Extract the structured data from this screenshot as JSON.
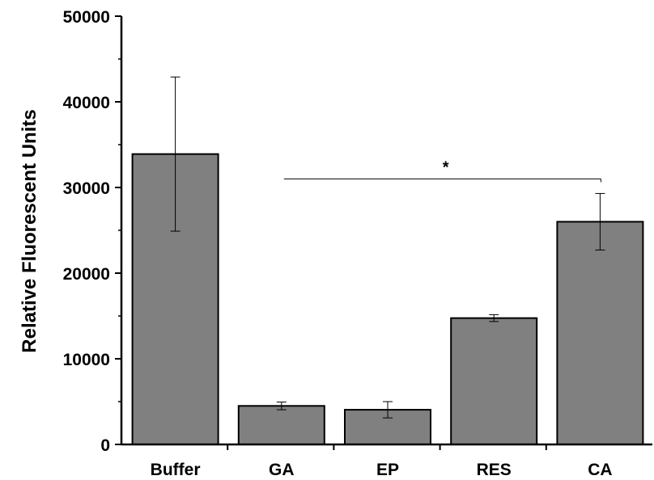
{
  "chart_data": {
    "type": "bar",
    "categories": [
      "Buffer",
      "GA",
      "EP",
      "RES",
      "CA"
    ],
    "values": [
      33900,
      4500,
      4050,
      14750,
      26000
    ],
    "errors": [
      9000,
      450,
      950,
      400,
      3300
    ],
    "ylabel": "Relative Fluorescent Units",
    "xlabel": "",
    "ylim": [
      0,
      50000
    ],
    "yticks": [
      0,
      10000,
      20000,
      30000,
      40000,
      50000
    ],
    "ytick_labels": [
      "0",
      "10000",
      "20000",
      "30000",
      "40000",
      "50000"
    ],
    "bar_color": "#808080",
    "significance": {
      "from": "GA",
      "to": "CA",
      "y": 31000,
      "label": "*"
    },
    "grid": false
  }
}
